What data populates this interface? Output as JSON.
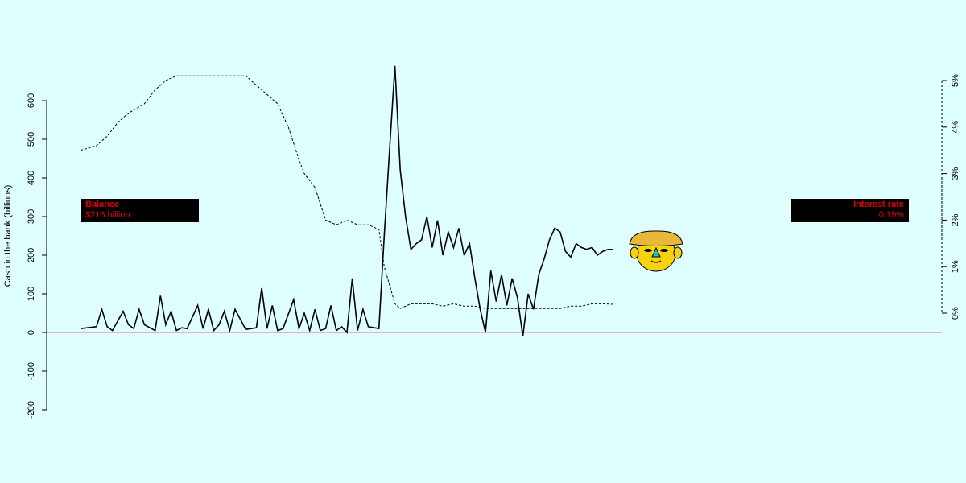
{
  "colors": {
    "background": "#dfffff",
    "balance_line": "#000000",
    "rate_line": "#000000",
    "zero_line": "#e87070",
    "label_bg": "#000000",
    "label_text": "#e00000",
    "face_fill": "#f6d210",
    "hat_fill": "#e8b838",
    "nose_fill": "#20c0c8"
  },
  "chart_data": {
    "type": "line",
    "ylabel": "Cash in the bank (billions)",
    "ylim": [
      -200,
      600
    ],
    "yticks": [
      "-200",
      "-100",
      "0",
      "100",
      "200",
      "300",
      "400",
      "500",
      "600"
    ],
    "y2lim": [
      0,
      5
    ],
    "y2ticks": [
      "0%",
      "1%",
      "2%",
      "3%",
      "4%",
      "5%"
    ],
    "series": [
      {
        "name": "Balance",
        "style": "solid",
        "axis": "left",
        "x": [
          0,
          3,
          4,
          5,
          6,
          8,
          9,
          10,
          11,
          12,
          14,
          15,
          16,
          17,
          18,
          19,
          20,
          22,
          23,
          24,
          25,
          26,
          27,
          28,
          29,
          31,
          33,
          34,
          35,
          36,
          37,
          38,
          40,
          41,
          42,
          43,
          44,
          45,
          46,
          47,
          48,
          49,
          50,
          51,
          52,
          53,
          54,
          56,
          57,
          58,
          59,
          60,
          61,
          62,
          63,
          64,
          65,
          66,
          67,
          68,
          69,
          70,
          71,
          72,
          73,
          74,
          75,
          76,
          77,
          78,
          79,
          80,
          81,
          82,
          83,
          84,
          85,
          86,
          87,
          88,
          89,
          90,
          91,
          92,
          93,
          94,
          95,
          96,
          97,
          98,
          99,
          100
        ],
        "values": [
          10,
          15,
          60,
          15,
          5,
          55,
          20,
          10,
          60,
          20,
          5,
          95,
          20,
          55,
          5,
          12,
          10,
          70,
          10,
          60,
          5,
          20,
          55,
          5,
          60,
          8,
          12,
          115,
          10,
          70,
          5,
          10,
          85,
          10,
          50,
          5,
          60,
          5,
          10,
          70,
          5,
          15,
          0,
          140,
          5,
          60,
          15,
          10,
          250,
          475,
          690,
          420,
          300,
          215,
          230,
          240,
          300,
          220,
          290,
          200,
          260,
          220,
          270,
          200,
          230,
          140,
          60,
          0,
          160,
          80,
          150,
          70,
          140,
          90,
          -10,
          100,
          60,
          150,
          190,
          240,
          270,
          260,
          210,
          195,
          230,
          220,
          215,
          220,
          200,
          210,
          215,
          215
        ],
        "current_label": "$215 billion"
      },
      {
        "name": "Interest rate",
        "style": "dashed",
        "axis": "right",
        "x": [
          0,
          3,
          5,
          7,
          9,
          12,
          14,
          16,
          18,
          20,
          22,
          25,
          28,
          31,
          34,
          37,
          39,
          41,
          42,
          44,
          46,
          48,
          50,
          52,
          54,
          56,
          57,
          58,
          59,
          60,
          61,
          62,
          64,
          66,
          68,
          70,
          72,
          74,
          76,
          78,
          80,
          82,
          84,
          86,
          88,
          90,
          92,
          94,
          96,
          98,
          100
        ],
        "values": [
          3.5,
          3.6,
          3.8,
          4.1,
          4.3,
          4.5,
          4.8,
          5.0,
          5.1,
          5.1,
          5.1,
          5.1,
          5.1,
          5.1,
          4.8,
          4.5,
          4.0,
          3.3,
          3.0,
          2.7,
          2.0,
          1.9,
          2.0,
          1.9,
          1.9,
          1.8,
          1.0,
          0.6,
          0.2,
          0.1,
          0.15,
          0.2,
          0.2,
          0.2,
          0.15,
          0.2,
          0.15,
          0.15,
          0.1,
          0.1,
          0.1,
          0.1,
          0.1,
          0.1,
          0.1,
          0.1,
          0.15,
          0.15,
          0.2,
          0.2,
          0.19
        ],
        "current_label": "0.19%"
      }
    ],
    "reference_line": 0,
    "grid": false
  },
  "labels": {
    "balance_title": "Balance",
    "balance_value": "$215 billion",
    "rate_title": "Interest rate",
    "rate_value": "0.19%"
  },
  "icons": {
    "mascot": "mascot-face-icon"
  }
}
